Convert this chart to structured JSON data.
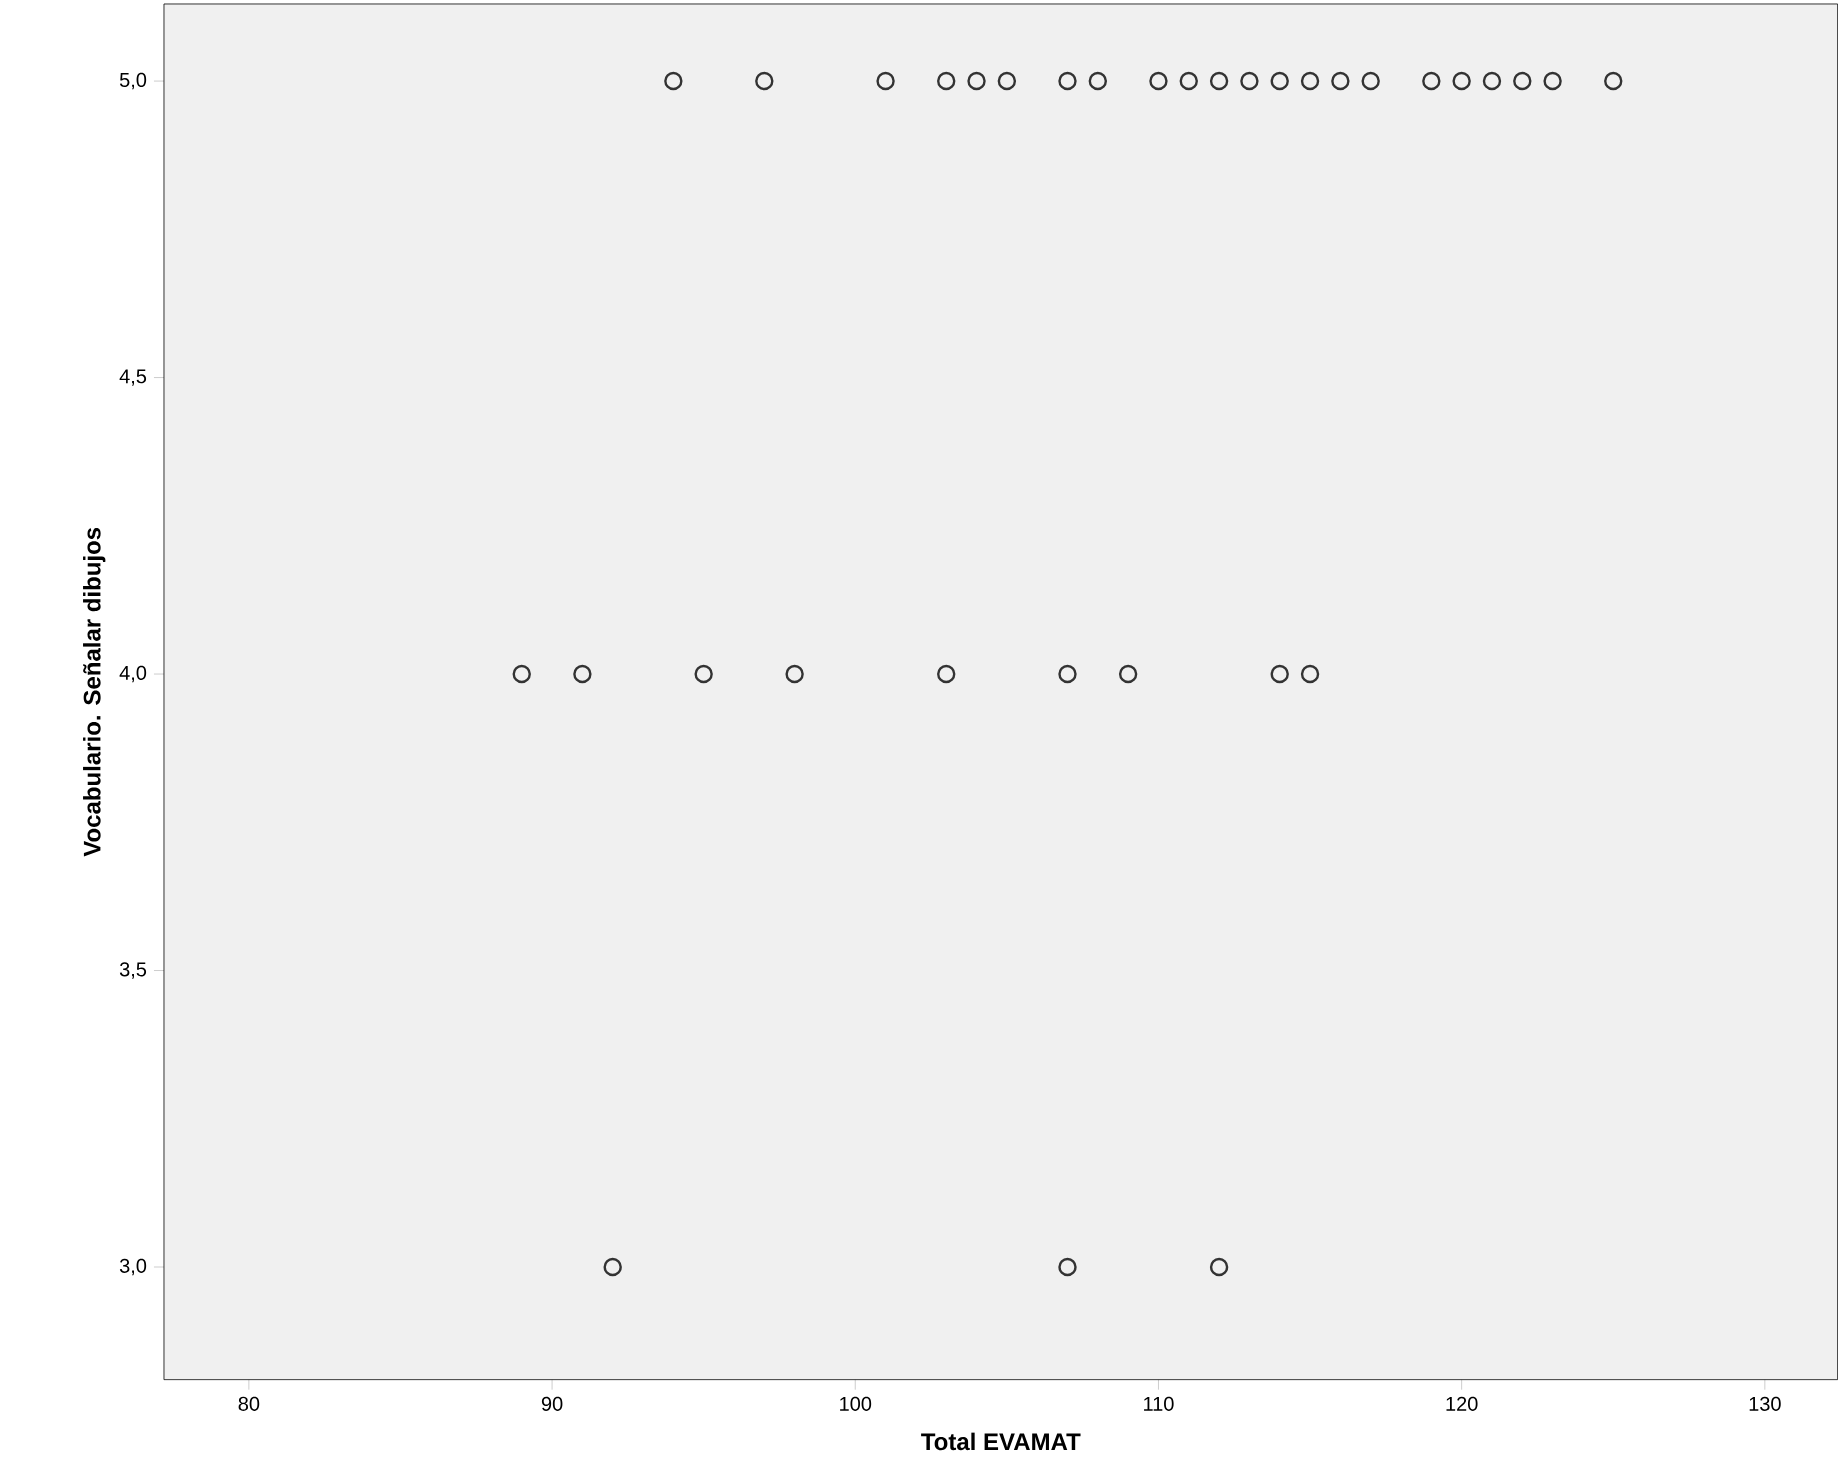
{
  "chart_data": {
    "type": "scatter",
    "xlabel": "Total EVAMAT",
    "ylabel": "Vocabulario. Señalar dibujos",
    "x": [
      94,
      97,
      101,
      103,
      104,
      105,
      107,
      108,
      110,
      111,
      112,
      113,
      114,
      115,
      116,
      117,
      119,
      120,
      121,
      122,
      123,
      125,
      89,
      91,
      95,
      98,
      103,
      107,
      109,
      114,
      115,
      92,
      107,
      112
    ],
    "values": [
      5,
      5,
      5,
      5,
      5,
      5,
      5,
      5,
      5,
      5,
      5,
      5,
      5,
      5,
      5,
      5,
      5,
      5,
      5,
      5,
      5,
      5,
      4,
      4,
      4,
      4,
      4,
      4,
      4,
      4,
      4,
      3,
      3,
      3
    ],
    "color": "#333333",
    "marker": "circle",
    "grid": false,
    "xlim": [
      77.2,
      132.4
    ],
    "xticks": [
      80,
      90,
      100,
      110,
      120,
      130
    ],
    "ylim": [
      2.81,
      5.13
    ],
    "yticks": [
      {
        "value": 3,
        "label": "3,0"
      },
      {
        "value": 3.5,
        "label": "3,5"
      },
      {
        "value": 4,
        "label": "4,0"
      },
      {
        "value": 4.5,
        "label": "4,5"
      },
      {
        "value": 5,
        "label": "5,0"
      }
    ]
  }
}
